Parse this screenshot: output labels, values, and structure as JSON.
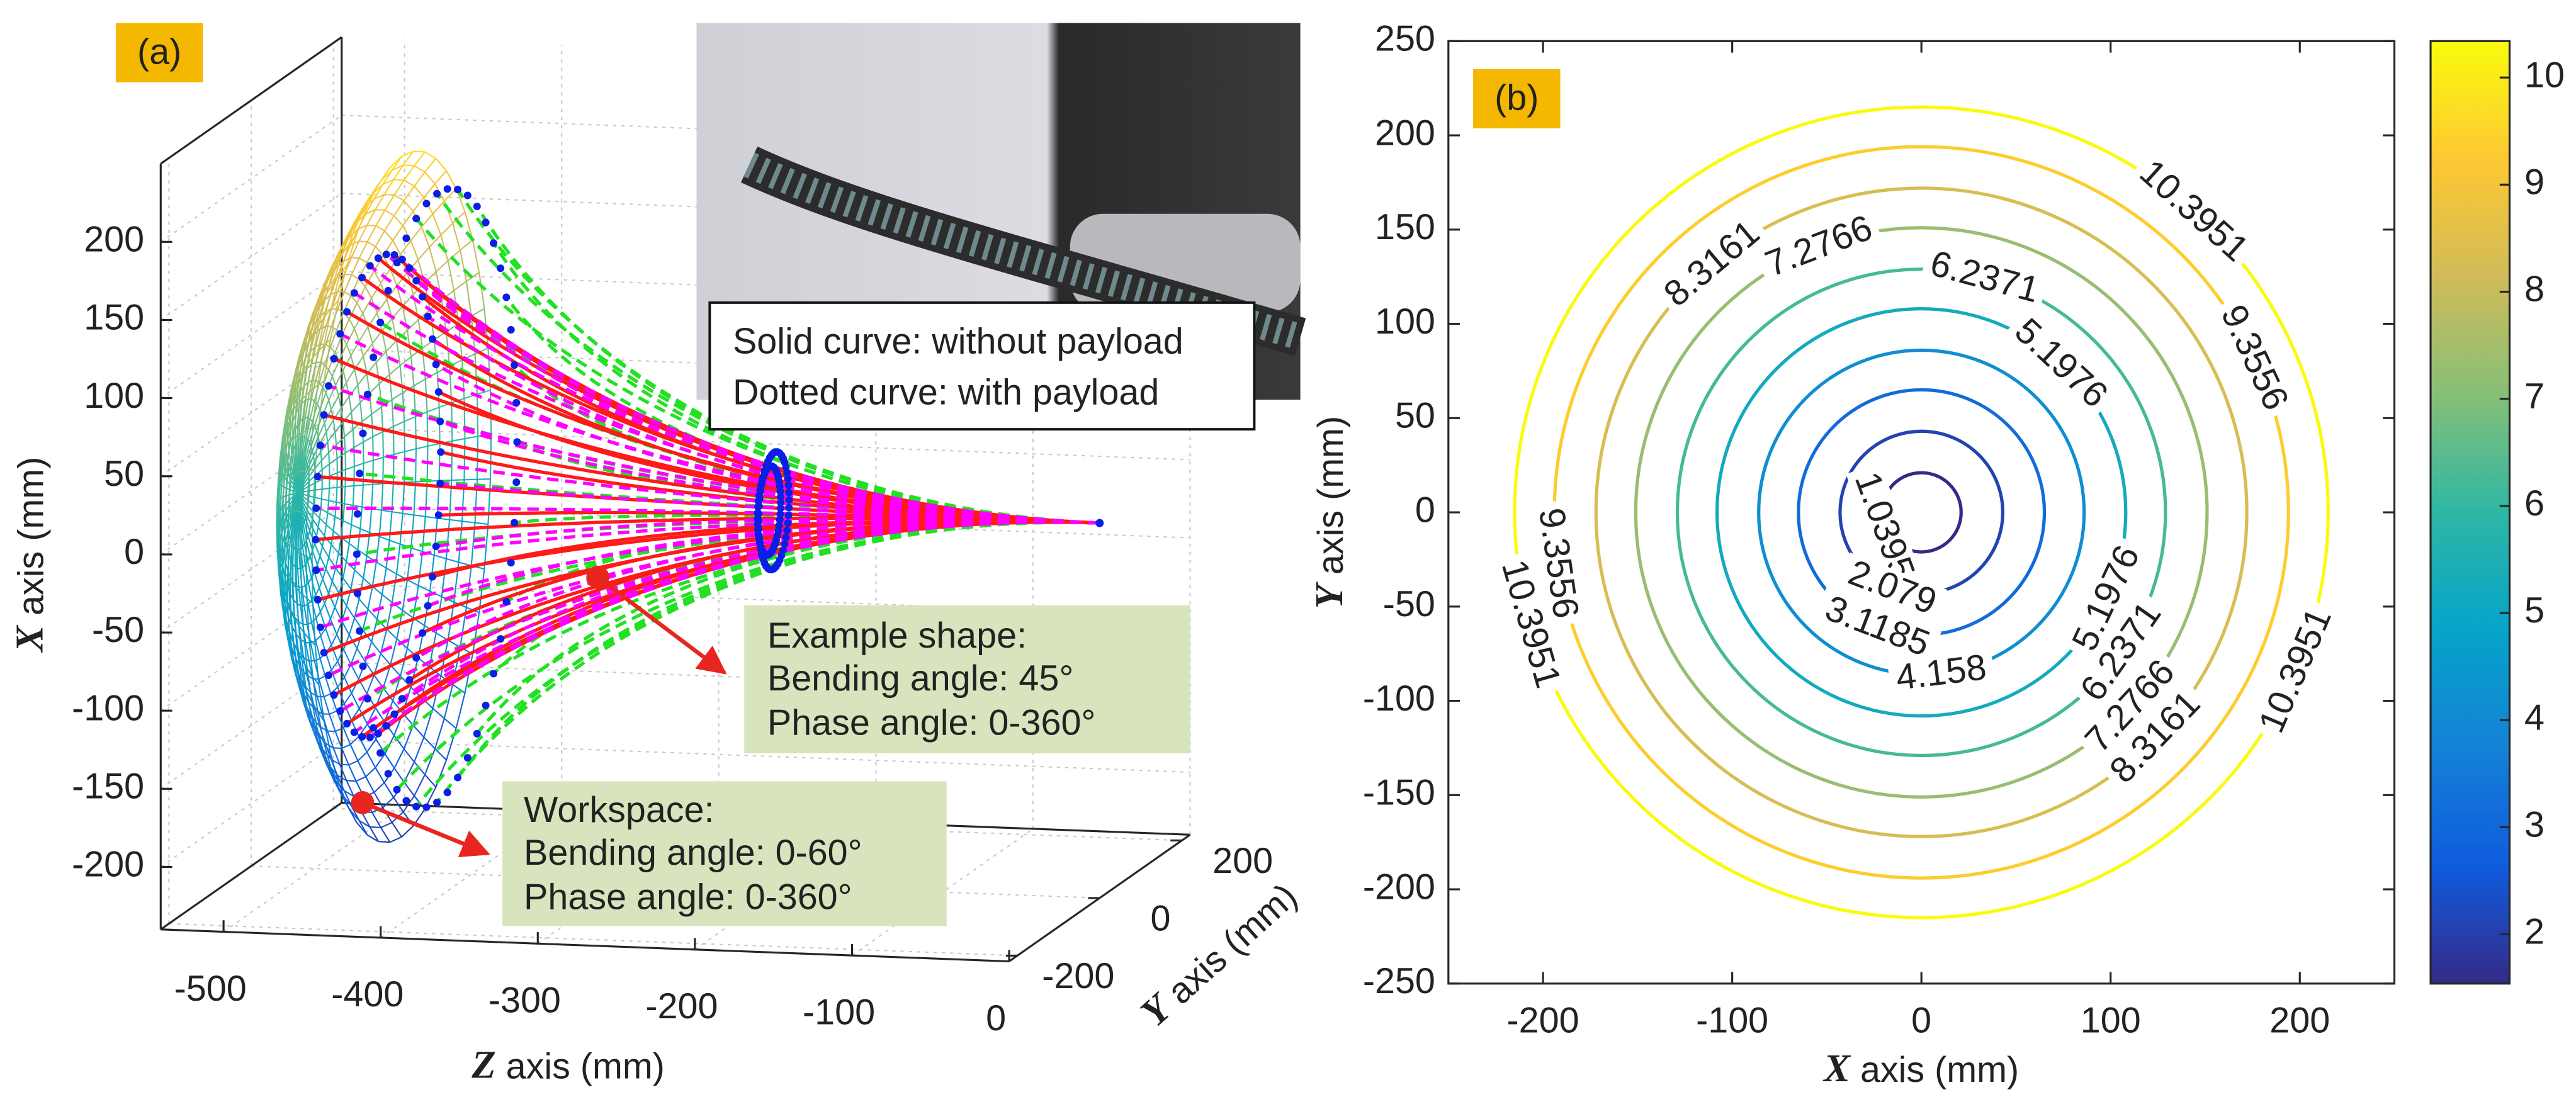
{
  "chart_data": [
    {
      "type": "surface3d",
      "panel": "(a)",
      "zlabel": {
        "symbol": "Z",
        "text": "axis (mm)"
      },
      "xlabel": {
        "symbol": "X",
        "text": "axis (mm)"
      },
      "ylabel": {
        "symbol": "Y",
        "text": "axis (mm)"
      },
      "zlim": [
        -540,
        0
      ],
      "zticks": [
        -500,
        -400,
        -300,
        -200,
        -100,
        0
      ],
      "xlim": [
        -240,
        250
      ],
      "xticks": [
        -200,
        -150,
        -100,
        -50,
        0,
        50,
        100,
        150,
        200
      ],
      "ylim": [
        -220,
        220
      ],
      "yticks": [
        -200,
        0,
        200
      ],
      "grid": true,
      "legend": [
        "Solid curve: without payload",
        "Dotted curve: with payload"
      ],
      "annotations": [
        {
          "lines": [
            "Example shape:",
            "Bending angle: 45°",
            "Phase angle: 0-360°"
          ]
        },
        {
          "lines": [
            "Workspace:",
            "Bending angle: 0-60°",
            "Phase angle: 0-360°"
          ]
        }
      ],
      "colormap": [
        "#352a87",
        "#0f5cdd",
        "#1481d6",
        "#06a4ca",
        "#2eb7a4",
        "#87bf77",
        "#d1bb59",
        "#fec832",
        "#f9fb0e"
      ]
    },
    {
      "type": "contour",
      "panel": "(b)",
      "xlabel": {
        "symbol": "X",
        "text": "axis (mm)"
      },
      "ylabel": {
        "symbol": "Y",
        "text": "axis (mm)"
      },
      "xlim": [
        -250,
        250
      ],
      "xticks": [
        -200,
        -100,
        0,
        100,
        200
      ],
      "ylim": [
        -250,
        250
      ],
      "yticks": [
        -250,
        -200,
        -150,
        -100,
        -50,
        0,
        50,
        100,
        150,
        200,
        250
      ],
      "levels": [
        1.0395,
        2.079,
        3.1185,
        4.158,
        5.1976,
        6.2371,
        7.2766,
        8.3161,
        9.3556,
        10.3951
      ],
      "radii": [
        21,
        43,
        65,
        86,
        108,
        129,
        151,
        172,
        194,
        215
      ],
      "clim": [
        1.54,
        10.34
      ],
      "cticks": [
        2,
        3,
        4,
        5,
        6,
        7,
        8,
        9,
        10
      ],
      "colormap": [
        "#352a87",
        "#0f5cdd",
        "#1481d6",
        "#06a4ca",
        "#2eb7a4",
        "#87bf77",
        "#d1bb59",
        "#fec832",
        "#f9fb0e"
      ]
    }
  ]
}
